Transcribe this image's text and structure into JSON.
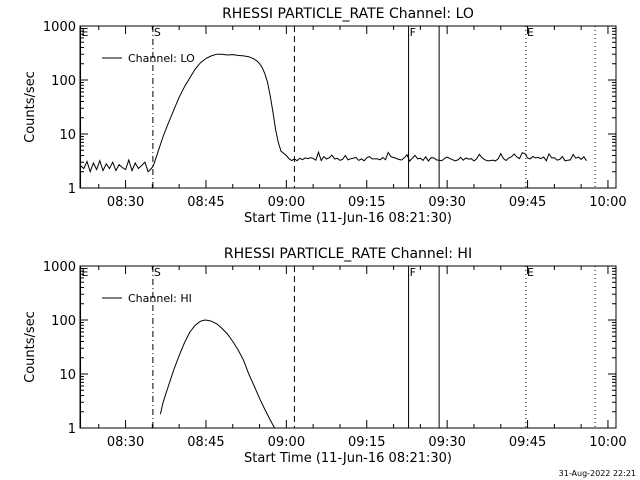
{
  "footer_timestamp": "31-Aug-2022 22:21",
  "chart_data": [
    {
      "type": "line",
      "title": "RHESSI PARTICLE_RATE Channel: LO",
      "xlabel": "Start Time (11-Jun-16 08:21:30)",
      "ylabel": "Counts/sec",
      "y_scale": "log",
      "ylim": [
        1,
        1000
      ],
      "xlim_minutes": [
        21.5,
        121.5
      ],
      "x_ticks": [
        {
          "t": 30,
          "label": "08:30"
        },
        {
          "t": 45,
          "label": "08:45"
        },
        {
          "t": 60,
          "label": "09:00"
        },
        {
          "t": 75,
          "label": "09:15"
        },
        {
          "t": 90,
          "label": "09:30"
        },
        {
          "t": 105,
          "label": "09:45"
        },
        {
          "t": 120,
          "label": "10:00"
        }
      ],
      "y_ticks": [
        {
          "v": 1,
          "label": "1"
        },
        {
          "v": 10,
          "label": "10"
        },
        {
          "v": 100,
          "label": "100"
        },
        {
          "v": 1000,
          "label": "1000"
        }
      ],
      "legend": {
        "label": "Channel: LO",
        "placement": "top-left"
      },
      "markers": [
        {
          "t": 21.6,
          "label": "E",
          "style": "solid"
        },
        {
          "t": 35.1,
          "label": "S",
          "style": "dashdot"
        },
        {
          "t": 61.5,
          "label": "",
          "style": "dashed"
        },
        {
          "t": 82.8,
          "label": "F",
          "style": "solid"
        },
        {
          "t": 88.5,
          "label": "",
          "style": "solid"
        },
        {
          "t": 104.7,
          "label": "E",
          "style": "dotted"
        },
        {
          "t": 117.6,
          "label": "",
          "style": "dotted"
        }
      ],
      "series": [
        {
          "name": "Channel: LO",
          "noise": {
            "base": 3.5,
            "amp": 0.35,
            "from": 60,
            "to": 116
          },
          "x": [
            21.6,
            22.2,
            22.8,
            23.4,
            24.0,
            24.6,
            25.2,
            25.8,
            26.4,
            27.0,
            27.6,
            28.2,
            28.8,
            29.4,
            30.0,
            30.6,
            31.2,
            31.8,
            32.4,
            33.0,
            33.6,
            34.2,
            34.8,
            35.2,
            36.0,
            37.0,
            38.0,
            39.0,
            40.0,
            41.0,
            42.0,
            43.0,
            44.0,
            45.0,
            46.0,
            47.0,
            48.0,
            49.0,
            50.0,
            51.0,
            52.0,
            53.0,
            54.0,
            54.5,
            55.0,
            55.5,
            56.0,
            56.5,
            57.0,
            57.5,
            58.0,
            58.5,
            59.0,
            60.0
          ],
          "values": [
            2.6,
            2.3,
            3.1,
            2.0,
            2.9,
            2.2,
            3.2,
            2.1,
            2.8,
            2.3,
            3.0,
            2.1,
            2.7,
            2.4,
            2.2,
            3.3,
            2.1,
            2.9,
            2.3,
            2.6,
            3.0,
            2.0,
            2.3,
            2.6,
            4.5,
            9,
            16,
            28,
            48,
            75,
            110,
            160,
            210,
            250,
            280,
            300,
            300,
            290,
            295,
            285,
            280,
            270,
            245,
            225,
            200,
            170,
            130,
            90,
            50,
            25,
            12,
            7,
            4.8,
            4.0
          ]
        }
      ]
    },
    {
      "type": "line",
      "title": "RHESSI PARTICLE_RATE Channel: HI",
      "xlabel": "Start Time (11-Jun-16 08:21:30)",
      "ylabel": "Counts/sec",
      "y_scale": "log",
      "ylim": [
        1,
        1000
      ],
      "xlim_minutes": [
        21.5,
        121.5
      ],
      "x_ticks": [
        {
          "t": 30,
          "label": "08:30"
        },
        {
          "t": 45,
          "label": "08:45"
        },
        {
          "t": 60,
          "label": "09:00"
        },
        {
          "t": 75,
          "label": "09:15"
        },
        {
          "t": 90,
          "label": "09:30"
        },
        {
          "t": 105,
          "label": "09:45"
        },
        {
          "t": 120,
          "label": "10:00"
        }
      ],
      "y_ticks": [
        {
          "v": 1,
          "label": "1"
        },
        {
          "v": 10,
          "label": "10"
        },
        {
          "v": 100,
          "label": "100"
        },
        {
          "v": 1000,
          "label": "1000"
        }
      ],
      "legend": {
        "label": "Channel: HI",
        "placement": "top-left"
      },
      "markers": [
        {
          "t": 21.6,
          "label": "E",
          "style": "solid"
        },
        {
          "t": 35.1,
          "label": "S",
          "style": "dashdot"
        },
        {
          "t": 61.5,
          "label": "",
          "style": "dashed"
        },
        {
          "t": 82.8,
          "label": "F",
          "style": "solid"
        },
        {
          "t": 88.5,
          "label": "",
          "style": "solid"
        },
        {
          "t": 104.7,
          "label": "E",
          "style": "dotted"
        },
        {
          "t": 117.6,
          "label": "",
          "style": "dotted"
        }
      ],
      "series": [
        {
          "name": "Channel: HI",
          "x": [
            36.5,
            37.0,
            38.0,
            39.0,
            40.0,
            41.0,
            42.0,
            43.0,
            44.0,
            44.8,
            45.5,
            46.0,
            47.0,
            48.0,
            49.0,
            50.0,
            51.0,
            52.0,
            53.0,
            54.0,
            55.0,
            56.0,
            57.0,
            57.8
          ],
          "values": [
            1.8,
            3.0,
            6.0,
            12,
            22,
            38,
            60,
            80,
            95,
            100,
            98,
            95,
            85,
            70,
            55,
            40,
            28,
            18,
            10,
            6,
            3.5,
            2.2,
            1.4,
            1.0
          ]
        }
      ]
    }
  ]
}
